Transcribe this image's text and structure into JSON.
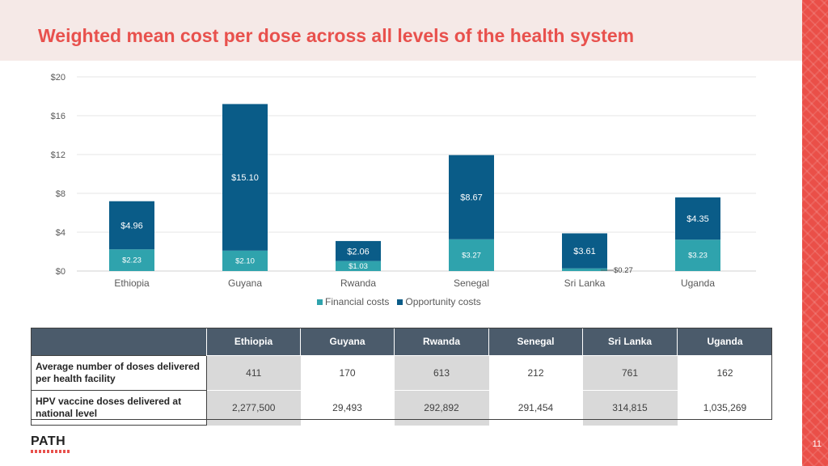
{
  "slide": {
    "title": "Weighted mean cost per dose across all levels of the health system",
    "page_number": "11",
    "logo_text": "PATH"
  },
  "colors": {
    "financial": "#2fa3ad",
    "opportunity": "#0a5c88",
    "accent": "#e8514d"
  },
  "chart_data": {
    "type": "bar",
    "stacked": true,
    "categories": [
      "Ethiopia",
      "Guyana",
      "Rwanda",
      "Senegal",
      "Sri Lanka",
      "Uganda"
    ],
    "series": [
      {
        "name": "Financial costs",
        "values": [
          2.23,
          2.1,
          1.03,
          3.27,
          0.27,
          3.23
        ],
        "labels": [
          "$2.23",
          "$2.10",
          "$1.03",
          "$3.27",
          "$0.27",
          "$3.23"
        ]
      },
      {
        "name": "Opportunity costs",
        "values": [
          4.96,
          15.1,
          2.06,
          8.67,
          3.61,
          4.35
        ],
        "labels": [
          "$4.96",
          "$15.10",
          "$2.06",
          "$8.67",
          "$3.61",
          "$4.35"
        ]
      }
    ],
    "yticks": [
      0,
      4,
      8,
      12,
      16,
      20
    ],
    "ytick_labels": [
      "$0",
      "$4",
      "$8",
      "$12",
      "$16",
      "$20"
    ],
    "ylim": [
      0,
      20
    ],
    "legend": [
      "Financial costs",
      "Opportunity costs"
    ],
    "legend_position": "bottom",
    "grid": true
  },
  "table": {
    "headers": [
      "",
      "Ethiopia",
      "Guyana",
      "Rwanda",
      "Senegal",
      "Sri Lanka",
      "Uganda"
    ],
    "rows": [
      {
        "label": "Average number of doses delivered per health facility",
        "values": [
          "411",
          "170",
          "613",
          "212",
          "761",
          "162"
        ]
      },
      {
        "label": "HPV vaccine doses delivered at national level",
        "values": [
          "2,277,500",
          "29,493",
          "292,892",
          "291,454",
          "314,815",
          "1,035,269"
        ]
      }
    ]
  }
}
